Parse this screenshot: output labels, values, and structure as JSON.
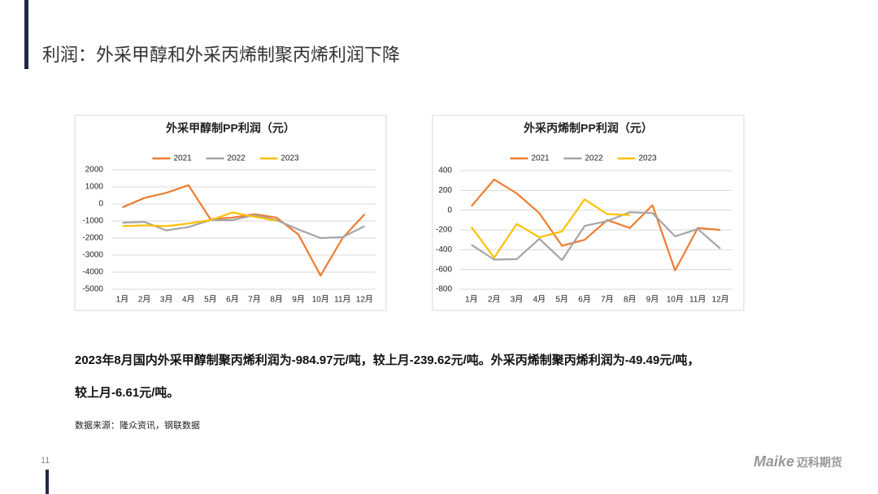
{
  "header": {
    "title": "利润：外采甲醇和外采丙烯制聚丙烯利润下降"
  },
  "chart_data": [
    {
      "type": "line",
      "title": "外采甲醇制PP利润（元）",
      "categories": [
        "1月",
        "2月",
        "3月",
        "4月",
        "5月",
        "6月",
        "7月",
        "8月",
        "9月",
        "10月",
        "11月",
        "12月"
      ],
      "ylim": [
        -5000,
        2000
      ],
      "yticks": [
        -5000,
        -4000,
        -3000,
        -2000,
        -1000,
        0,
        1000,
        2000
      ],
      "grid": true,
      "series": [
        {
          "name": "2021",
          "color": "#ED7D31",
          "values": [
            -200,
            350,
            650,
            1100,
            -900,
            -800,
            -600,
            -800,
            -1800,
            -4200,
            -2000,
            -600
          ]
        },
        {
          "name": "2022",
          "color": "#A5A5A5",
          "values": [
            -1100,
            -1050,
            -1550,
            -1350,
            -950,
            -950,
            -650,
            -950,
            -1500,
            -2000,
            -1950,
            -1300
          ]
        },
        {
          "name": "2023",
          "color": "#FFC000",
          "values": [
            -1300,
            -1250,
            -1300,
            -1150,
            -950,
            -500,
            -750,
            -985,
            null,
            null,
            null,
            null
          ]
        }
      ]
    },
    {
      "type": "line",
      "title": "外采丙烯制PP利润（元）",
      "categories": [
        "1月",
        "2月",
        "3月",
        "4月",
        "5月",
        "6月",
        "7月",
        "8月",
        "9月",
        "10月",
        "11月",
        "12月"
      ],
      "ylim": [
        -800,
        400
      ],
      "yticks": [
        -800,
        -600,
        -400,
        -200,
        0,
        200,
        400
      ],
      "grid": true,
      "series": [
        {
          "name": "2021",
          "color": "#ED7D31",
          "values": [
            40,
            310,
            170,
            -30,
            -360,
            -300,
            -100,
            -180,
            50,
            -610,
            -180,
            -200
          ]
        },
        {
          "name": "2022",
          "color": "#A5A5A5",
          "values": [
            -350,
            -500,
            -495,
            -290,
            -505,
            -160,
            -110,
            -20,
            -30,
            -265,
            -190,
            -390
          ]
        },
        {
          "name": "2023",
          "color": "#FFC000",
          "values": [
            -170,
            -480,
            -140,
            -275,
            -215,
            110,
            -40,
            -49,
            null,
            null,
            null,
            null
          ]
        }
      ]
    }
  ],
  "body": [
    "2023年8月国内外采甲醇制聚丙烯利润为-984.97元/吨，较上月-239.62元/吨。外采丙烯制聚丙烯利润为-49.49元/吨，",
    "较上月-6.61元/吨。"
  ],
  "source": "数据来源：隆众资讯，钢联数据",
  "page_number": "11",
  "logo": {
    "brand": "Maike",
    "name": "迈科期货"
  }
}
